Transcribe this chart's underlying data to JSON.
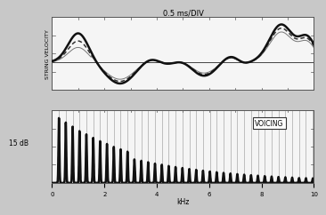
{
  "fig_bg": "#c8c8c8",
  "panel_bg": "#f5f5f5",
  "top_title": "0.5 ms/DIV",
  "top_ylabel": "STRING VELOCITY",
  "bottom_xlabel": "kHz",
  "bottom_ylabel": "15 dB",
  "bottom_legend": "VOICING",
  "line_full_color": "#111111",
  "line_full_lw": 1.8,
  "line_dashed_color": "#333333",
  "line_dashed_lw": 1.1,
  "line_thin_color": "#777777",
  "line_thin_lw": 0.7,
  "vline_color": "#888888",
  "vline_lw": 0.5,
  "fund_khz": 0.262
}
